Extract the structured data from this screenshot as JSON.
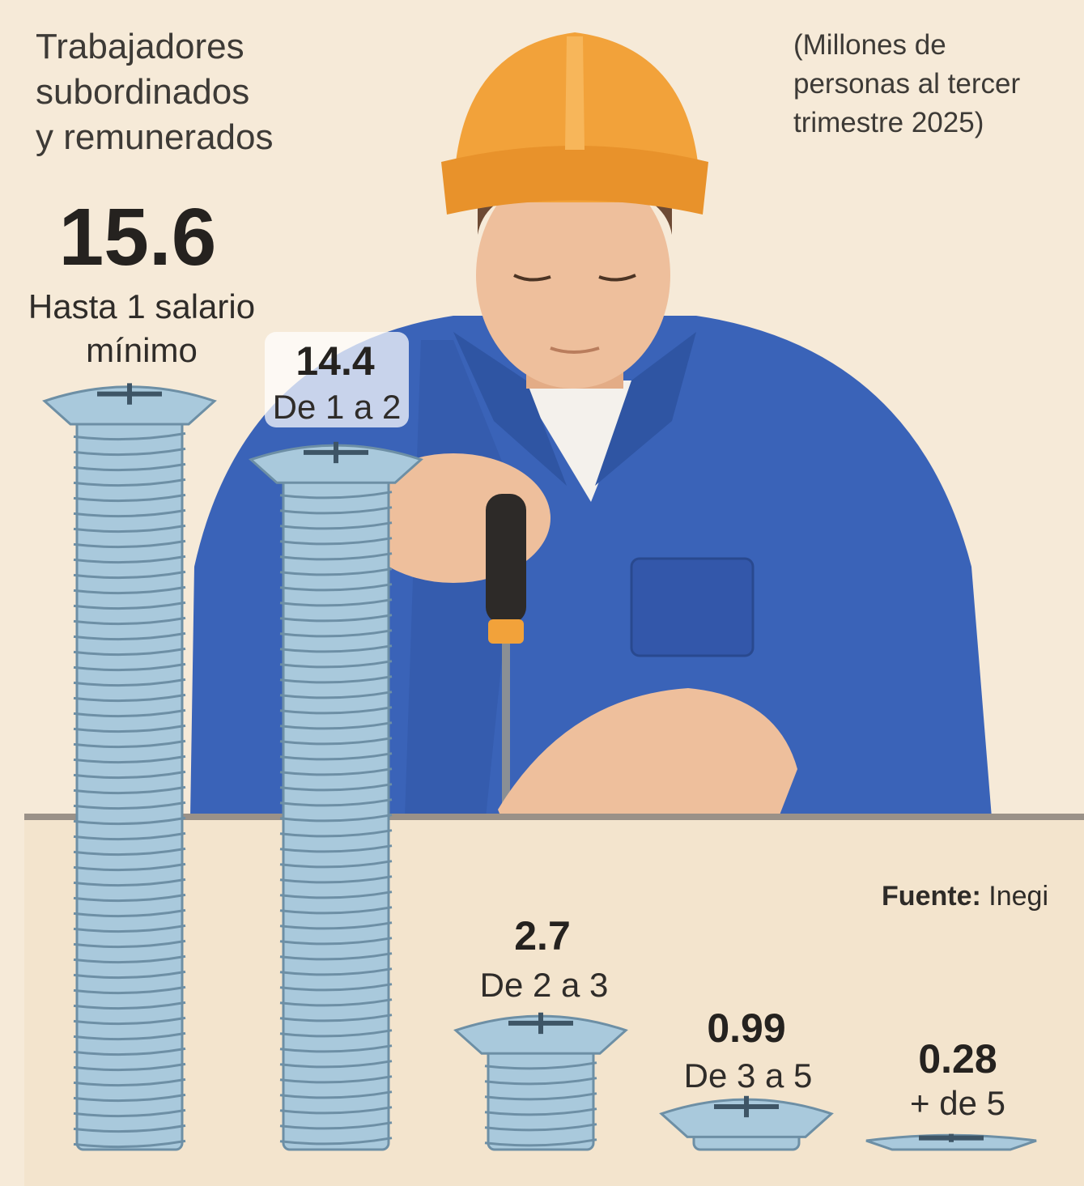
{
  "header": {
    "title_lines": [
      "Trabajadores",
      "subordinados",
      "y remunerados"
    ],
    "units_lines": [
      "(Millones de",
      "personas al tercer",
      "trimestre 2025)"
    ]
  },
  "source": {
    "label": "Fuente:",
    "name": "Inegi"
  },
  "colors": {
    "background": "#f6ead8",
    "screw": "#a9c9dc",
    "screw_shadow": "#6d8fa5",
    "helmet": "#f2a23a",
    "uniform": "#3a63b8",
    "skin": "#eebf9c"
  },
  "illustration": {
    "elements": [
      "worker-with-helmet",
      "screwdriver",
      "screw-icon"
    ]
  },
  "chart_data": {
    "type": "bar",
    "categories": [
      "Hasta 1 salario mínimo",
      "De 1 a 2",
      "De 2 a 3",
      "De 3 a 5",
      "+ de 5"
    ],
    "values": [
      15.6,
      14.4,
      2.7,
      0.99,
      0.28
    ],
    "value_labels": [
      "15.6",
      "14.4",
      "2.7",
      "0.99",
      "0.28"
    ],
    "label_lines": [
      [
        "Hasta 1 salario",
        "mínimo"
      ],
      [
        "De 1 a 2"
      ],
      [
        "De 2 a 3"
      ],
      [
        "De 3 a 5"
      ],
      [
        "+ de 5"
      ]
    ],
    "title": "",
    "xlabel": "",
    "ylabel": "",
    "ylim": [
      0,
      15.6
    ],
    "grid": false,
    "legend": "none"
  }
}
